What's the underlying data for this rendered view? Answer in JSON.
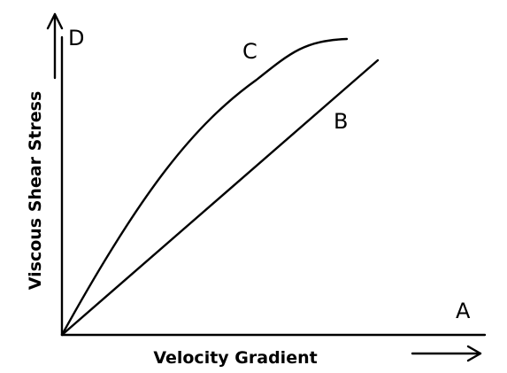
{
  "diagram": {
    "x_axis_title": "Velocity Gradient",
    "y_axis_title": "Viscous Shear Stress",
    "labels": {
      "a": "A",
      "b": "B",
      "c": "C",
      "d": "D"
    }
  }
}
